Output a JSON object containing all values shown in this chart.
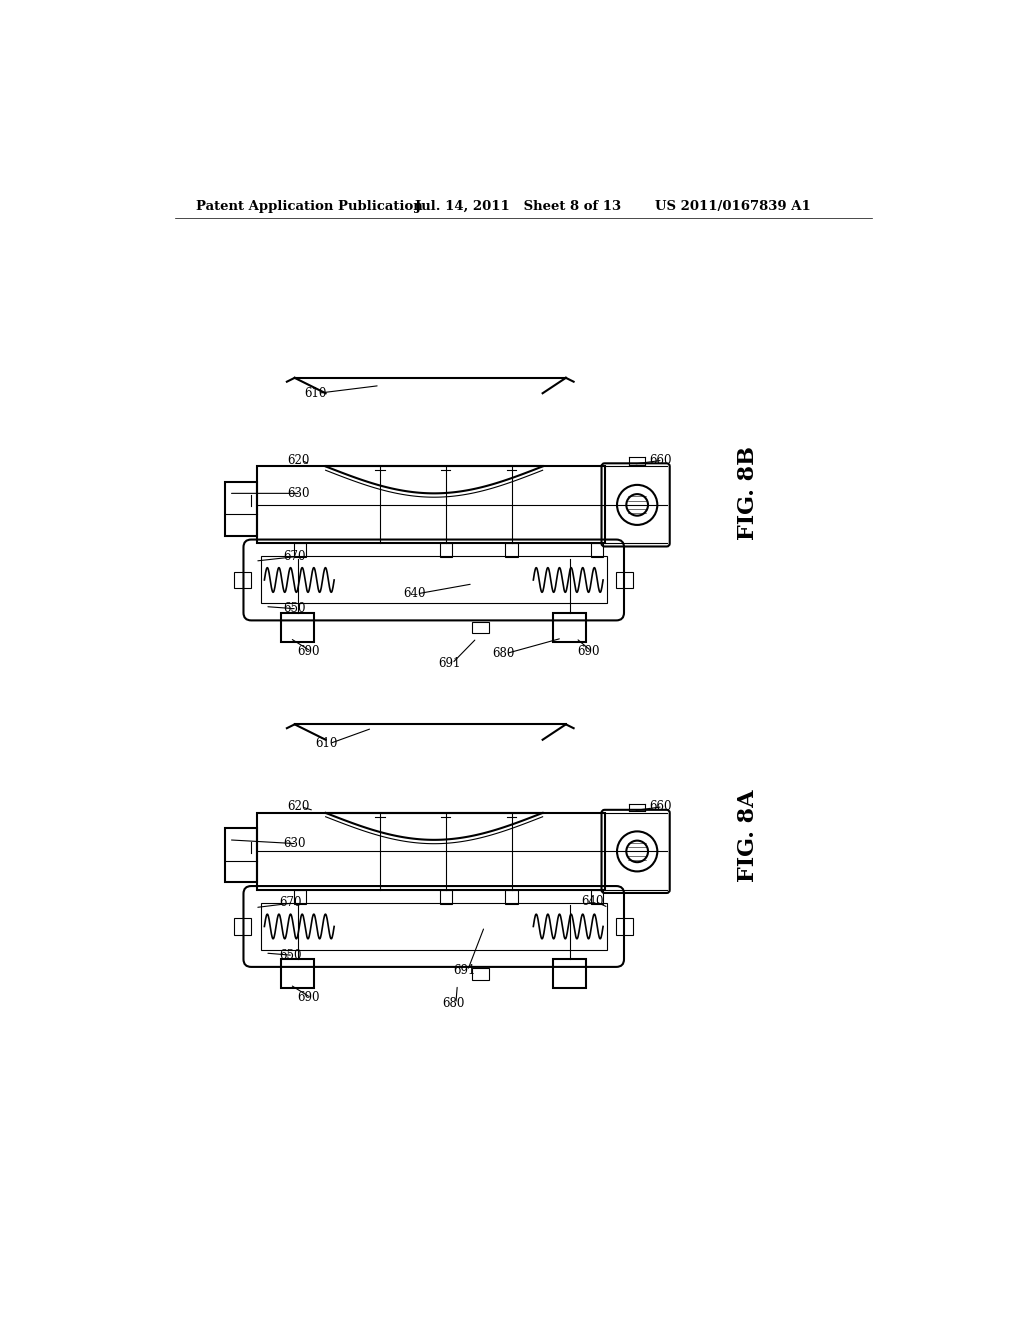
{
  "background_color": "#ffffff",
  "header_left": "Patent Application Publication",
  "header_center": "Jul. 14, 2011   Sheet 8 of 13",
  "header_right": "US 2011/0167839 A1",
  "fig_8b_label": "FIG. 8B",
  "fig_8a_label": "FIG. 8A",
  "line_color": "#000000",
  "lw": 1.5
}
